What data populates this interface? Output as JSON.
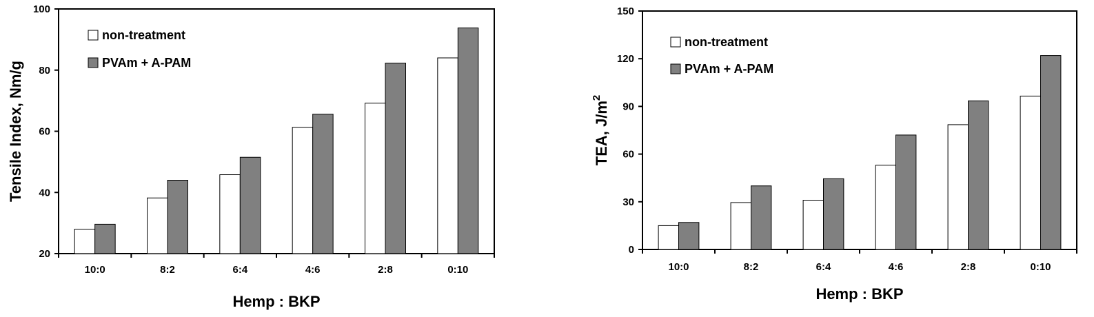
{
  "chart_data": [
    {
      "type": "bar",
      "categories": [
        "10:0",
        "8:2",
        "6:4",
        "4:6",
        "2:8",
        "0:10"
      ],
      "series": [
        {
          "name": "non-treatment",
          "values": [
            28,
            38.2,
            45.8,
            61.3,
            69.2,
            84
          ],
          "color": "#ffffff"
        },
        {
          "name": "PVAm + A-PAM",
          "values": [
            29.6,
            44,
            51.5,
            65.6,
            82.3,
            93.8
          ],
          "color": "#808080"
        }
      ],
      "xlabel": "Hemp : BKP",
      "ylabel": "Tensile Index, Nm/g",
      "ylim": [
        20,
        100
      ],
      "yticks": [
        20,
        40,
        60,
        80,
        100
      ],
      "legend": "top-left",
      "grid": false
    },
    {
      "type": "bar",
      "categories": [
        "10:0",
        "8:2",
        "6:4",
        "4:6",
        "2:8",
        "0:10"
      ],
      "series": [
        {
          "name": "non-treatment",
          "values": [
            15,
            29.5,
            31,
            53,
            78.5,
            96.5
          ],
          "color": "#ffffff"
        },
        {
          "name": "PVAm + A-PAM",
          "values": [
            17,
            40,
            44.5,
            72,
            93.5,
            122
          ],
          "color": "#808080"
        }
      ],
      "xlabel": "Hemp : BKP",
      "ylabel": "TEA, J/m",
      "ylabel_sup": "2",
      "ylim": [
        0,
        150
      ],
      "yticks": [
        0,
        30,
        60,
        90,
        120,
        150
      ],
      "legend": "top-left",
      "grid": false
    }
  ]
}
